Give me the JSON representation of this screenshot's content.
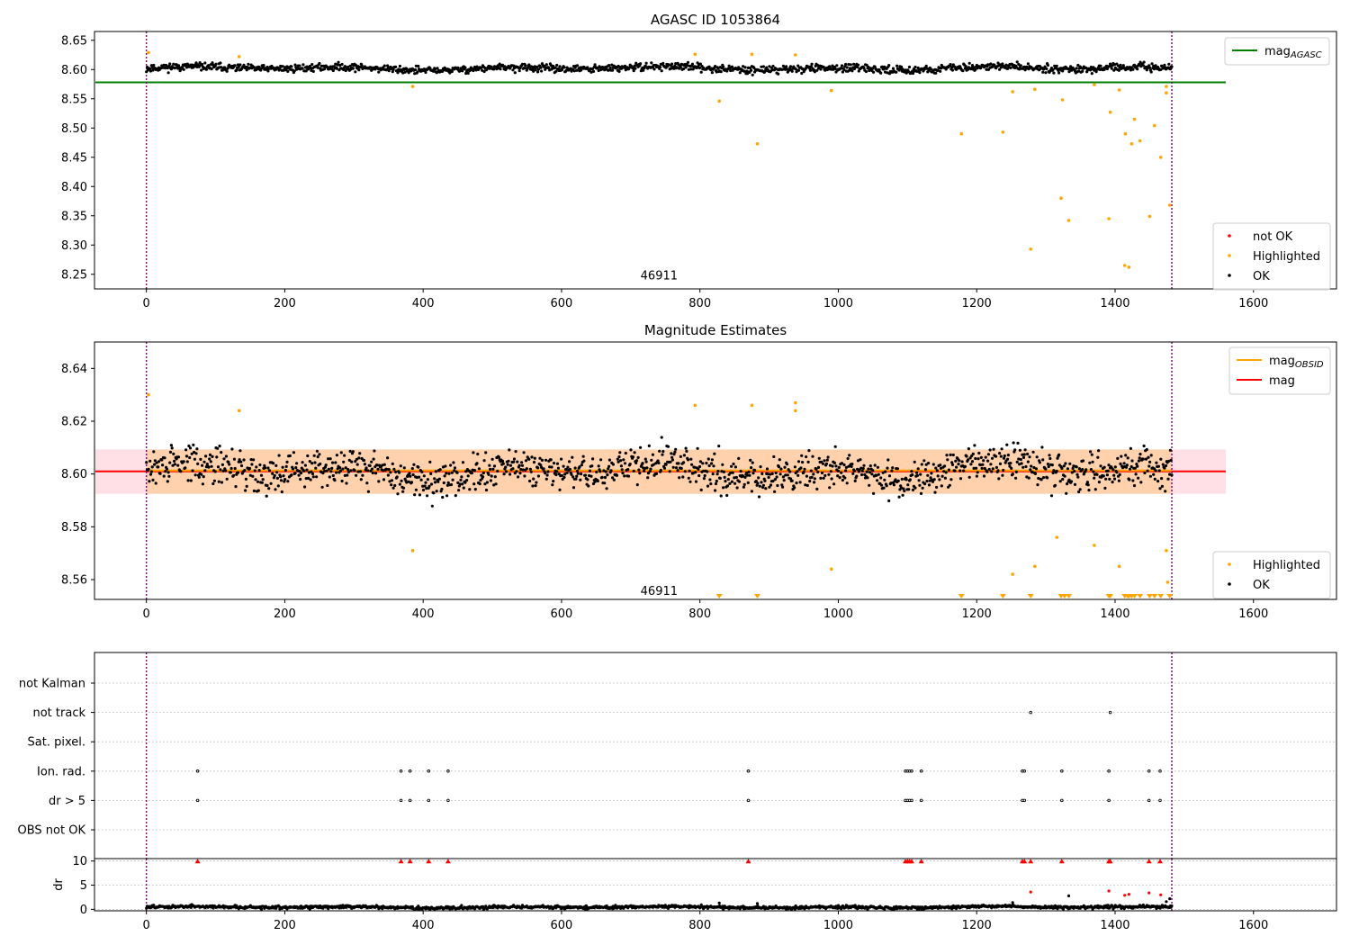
{
  "chart_data": [
    {
      "type": "scatter",
      "title": "AGASC ID 1053864",
      "xlim": [
        -75,
        1720
      ],
      "ylim": [
        8.225,
        8.665
      ],
      "xticks": [
        0,
        200,
        400,
        600,
        800,
        1000,
        1200,
        1400,
        1600
      ],
      "yticks": [
        8.25,
        8.3,
        8.35,
        8.4,
        8.45,
        8.5,
        8.55,
        8.6,
        8.65
      ],
      "obsid_label": {
        "text": "46911",
        "x": 741,
        "y": 8.247
      },
      "vlines": [
        0,
        1482
      ],
      "mag_agasc": {
        "value": 8.578,
        "x_range": [
          -75,
          1560
        ]
      },
      "ok_trend": {
        "base": 8.602,
        "scatter": 0.006,
        "x_range": [
          0,
          1482
        ],
        "count": 1400
      },
      "legend_upper": [
        {
          "name": "mag",
          "subscript": "AGASC",
          "color": "#008000"
        }
      ],
      "legend_lower": [
        {
          "name": "not OK",
          "color": "#ff0000"
        },
        {
          "name": "Highlighted",
          "color": "#ffa500"
        },
        {
          "name": "OK",
          "color": "#000000"
        }
      ],
      "highlighted_points": [
        [
          3,
          8.629
        ],
        [
          134,
          8.622
        ],
        [
          385,
          8.571
        ],
        [
          793,
          8.626
        ],
        [
          828,
          8.546
        ],
        [
          875,
          8.626
        ],
        [
          883,
          8.473
        ],
        [
          938,
          8.625
        ],
        [
          990,
          8.564
        ],
        [
          1178,
          8.49
        ],
        [
          1238,
          8.493
        ],
        [
          1252,
          8.562
        ],
        [
          1278,
          8.293
        ],
        [
          1284,
          8.566
        ],
        [
          1322,
          8.38
        ],
        [
          1324,
          8.548
        ],
        [
          1333,
          8.342
        ],
        [
          1370,
          8.574
        ],
        [
          1391,
          8.345
        ],
        [
          1393,
          8.527
        ],
        [
          1406,
          8.565
        ],
        [
          1414,
          8.265
        ],
        [
          1415,
          8.49
        ],
        [
          1420,
          8.262
        ],
        [
          1424,
          8.473
        ],
        [
          1428,
          8.515
        ],
        [
          1436,
          8.478
        ],
        [
          1450,
          8.349
        ],
        [
          1457,
          8.504
        ],
        [
          1466,
          8.45
        ],
        [
          1474,
          8.56
        ],
        [
          1474,
          8.571
        ],
        [
          1479,
          8.368
        ]
      ]
    },
    {
      "type": "scatter",
      "title": "Magnitude Estimates",
      "xlim": [
        -75,
        1720
      ],
      "ylim": [
        8.5525,
        8.65
      ],
      "xticks": [
        0,
        200,
        400,
        600,
        800,
        1000,
        1200,
        1400,
        1600
      ],
      "yticks": [
        8.56,
        8.58,
        8.6,
        8.62,
        8.64
      ],
      "obsid_label": {
        "text": "46911",
        "x": 741,
        "y": 8.5555
      },
      "vlines": [
        0,
        1482
      ],
      "mag": {
        "value": 8.601,
        "band": [
          8.5925,
          8.6093
        ],
        "x_range": [
          -75,
          1560
        ]
      },
      "mag_obsid": {
        "value": 8.601,
        "band": [
          8.5925,
          8.6093
        ],
        "x_range": [
          0,
          1482
        ]
      },
      "ok_trend": {
        "base": 8.601,
        "scatter": 0.0065,
        "x_range": [
          0,
          1482
        ],
        "count": 1400
      },
      "legend_upper": [
        {
          "name": "mag",
          "subscript": "OBSID",
          "color": "#ffa500"
        },
        {
          "name": "mag",
          "subscript": "",
          "color": "#ff0000"
        }
      ],
      "legend_lower": [
        {
          "name": "Highlighted",
          "color": "#ffa500"
        },
        {
          "name": "OK",
          "color": "#000000"
        }
      ],
      "highlighted_points": [
        [
          3,
          8.63
        ],
        [
          134,
          8.624
        ],
        [
          385,
          8.571
        ],
        [
          793,
          8.626
        ],
        [
          875,
          8.626
        ],
        [
          938,
          8.627
        ],
        [
          938,
          8.624
        ],
        [
          990,
          8.564
        ],
        [
          1252,
          8.562
        ],
        [
          1284,
          8.565
        ],
        [
          1316,
          8.576
        ],
        [
          1370,
          8.573
        ],
        [
          1406,
          8.565
        ],
        [
          1474,
          8.571
        ],
        [
          1476,
          8.559
        ]
      ],
      "clipped_low_x": [
        828,
        883,
        1178,
        1238,
        1278,
        1322,
        1327,
        1333,
        1391,
        1393,
        1414,
        1418,
        1420,
        1424,
        1428,
        1436,
        1450,
        1457,
        1466,
        1479
      ]
    },
    {
      "type": "scatter",
      "title": "",
      "xlim": [
        -75,
        1720
      ],
      "flag_labels": [
        "not Kalman",
        "not track",
        "Sat. pixel.",
        "Ion. rad.",
        "dr > 5",
        "OBS not OK"
      ],
      "flags": {
        "not Kalman": [],
        "not track": [
          1278,
          1393
        ],
        "Sat. pixel.": [],
        "Ion. rad.": [
          74,
          368,
          381,
          408,
          436,
          870,
          1097,
          1100,
          1103,
          1106,
          1120,
          1266,
          1269,
          1323,
          1391,
          1449,
          1465
        ],
        "dr > 5": [
          74,
          368,
          381,
          408,
          436,
          870,
          1097,
          1100,
          1103,
          1106,
          1120,
          1266,
          1269,
          1323,
          1391,
          1449,
          1465
        ],
        "OBS not OK": []
      },
      "vlines": [
        0,
        1482
      ]
    },
    {
      "type": "scatter",
      "title": "",
      "ylabel": "dr",
      "xlim": [
        -75,
        1720
      ],
      "ylim": [
        -0.3,
        10.5
      ],
      "xticks": [
        0,
        200,
        400,
        600,
        800,
        1000,
        1200,
        1400,
        1600
      ],
      "yticks": [
        0,
        5,
        10
      ],
      "vlines": [
        0,
        1482
      ],
      "dr_trend": {
        "base": 0.45,
        "scatter": 0.3,
        "x_range": [
          0,
          1482
        ],
        "count": 1400
      },
      "capped_at_10_x": [
        74,
        368,
        381,
        408,
        436,
        870,
        1097,
        1100,
        1103,
        1106,
        1120,
        1266,
        1269,
        1278,
        1323,
        1391,
        1393,
        1449,
        1465
      ],
      "red_points": [
        [
          1278,
          3.6
        ],
        [
          1391,
          3.8
        ],
        [
          1414,
          2.9
        ],
        [
          1420,
          3.1
        ],
        [
          1449,
          3.4
        ],
        [
          1466,
          3.0
        ]
      ],
      "gray_points": [
        [
          828,
          1.3
        ],
        [
          883,
          1.2
        ],
        [
          1252,
          1.4
        ],
        [
          1333,
          2.8
        ],
        [
          1479,
          2.2
        ],
        [
          1474,
          1.6
        ]
      ]
    }
  ]
}
